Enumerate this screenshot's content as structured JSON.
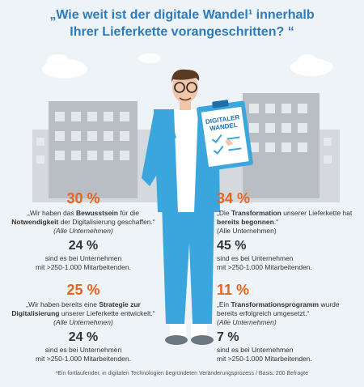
{
  "title": [
    "„Wie weit ist der digitale Wandel¹ innerhalb",
    "Ihrer Lieferkette vorangeschritten? “"
  ],
  "clipboard": [
    "DIGITALER",
    "WANDEL"
  ],
  "stats": [
    {
      "percent": "30 %",
      "quote": [
        "„Wir haben das ",
        "Bewusstsein",
        " für die ",
        "Notwendigkeit",
        " der Digitalisierung geschaffen.“ ",
        "(Alle Unternehmen)"
      ],
      "sub_percent": "24 %",
      "sub_text": [
        "sind es bei Unternehmen",
        "mit >250-1.000 Mitarbeitenden."
      ]
    },
    {
      "percent": "34 %",
      "quote": [
        "„Die ",
        "Transformation",
        " unserer Lieferkette hat ",
        "bereits begonnen",
        ".“",
        "(Alle Unternehmen)"
      ],
      "sub_percent": "45 %",
      "sub_text": [
        "sind es bei Unternehmen",
        "mit >250-1.000 Mitarbeitenden."
      ]
    },
    {
      "percent": "25 %",
      "quote": [
        "„Wir haben bereits eine ",
        "Strategie zur Digitalisierung",
        " unserer Lieferkette entwickelt.“ ",
        "(Alle Unternehmen)"
      ],
      "sub_percent": "24 %",
      "sub_text": [
        "sind es bei Unternehmen",
        "mit >250-1.000 Mitarbeitenden."
      ]
    },
    {
      "percent": "11 %",
      "quote": [
        "„Ein ",
        "Transformationsprogramm",
        " wurde bereits erfolgreich umgesetzt.“",
        "(Alle Unternehmen)"
      ],
      "sub_percent": "7 %",
      "sub_text": [
        "sind es bei Unternehmen",
        "mit >250-1.000 Mitarbeitenden."
      ]
    }
  ],
  "footnote": "¹Ein fortlaufender, in digitalen Technologien begründeten Veränderungsprozess / Basis: 200 Befragte"
}
